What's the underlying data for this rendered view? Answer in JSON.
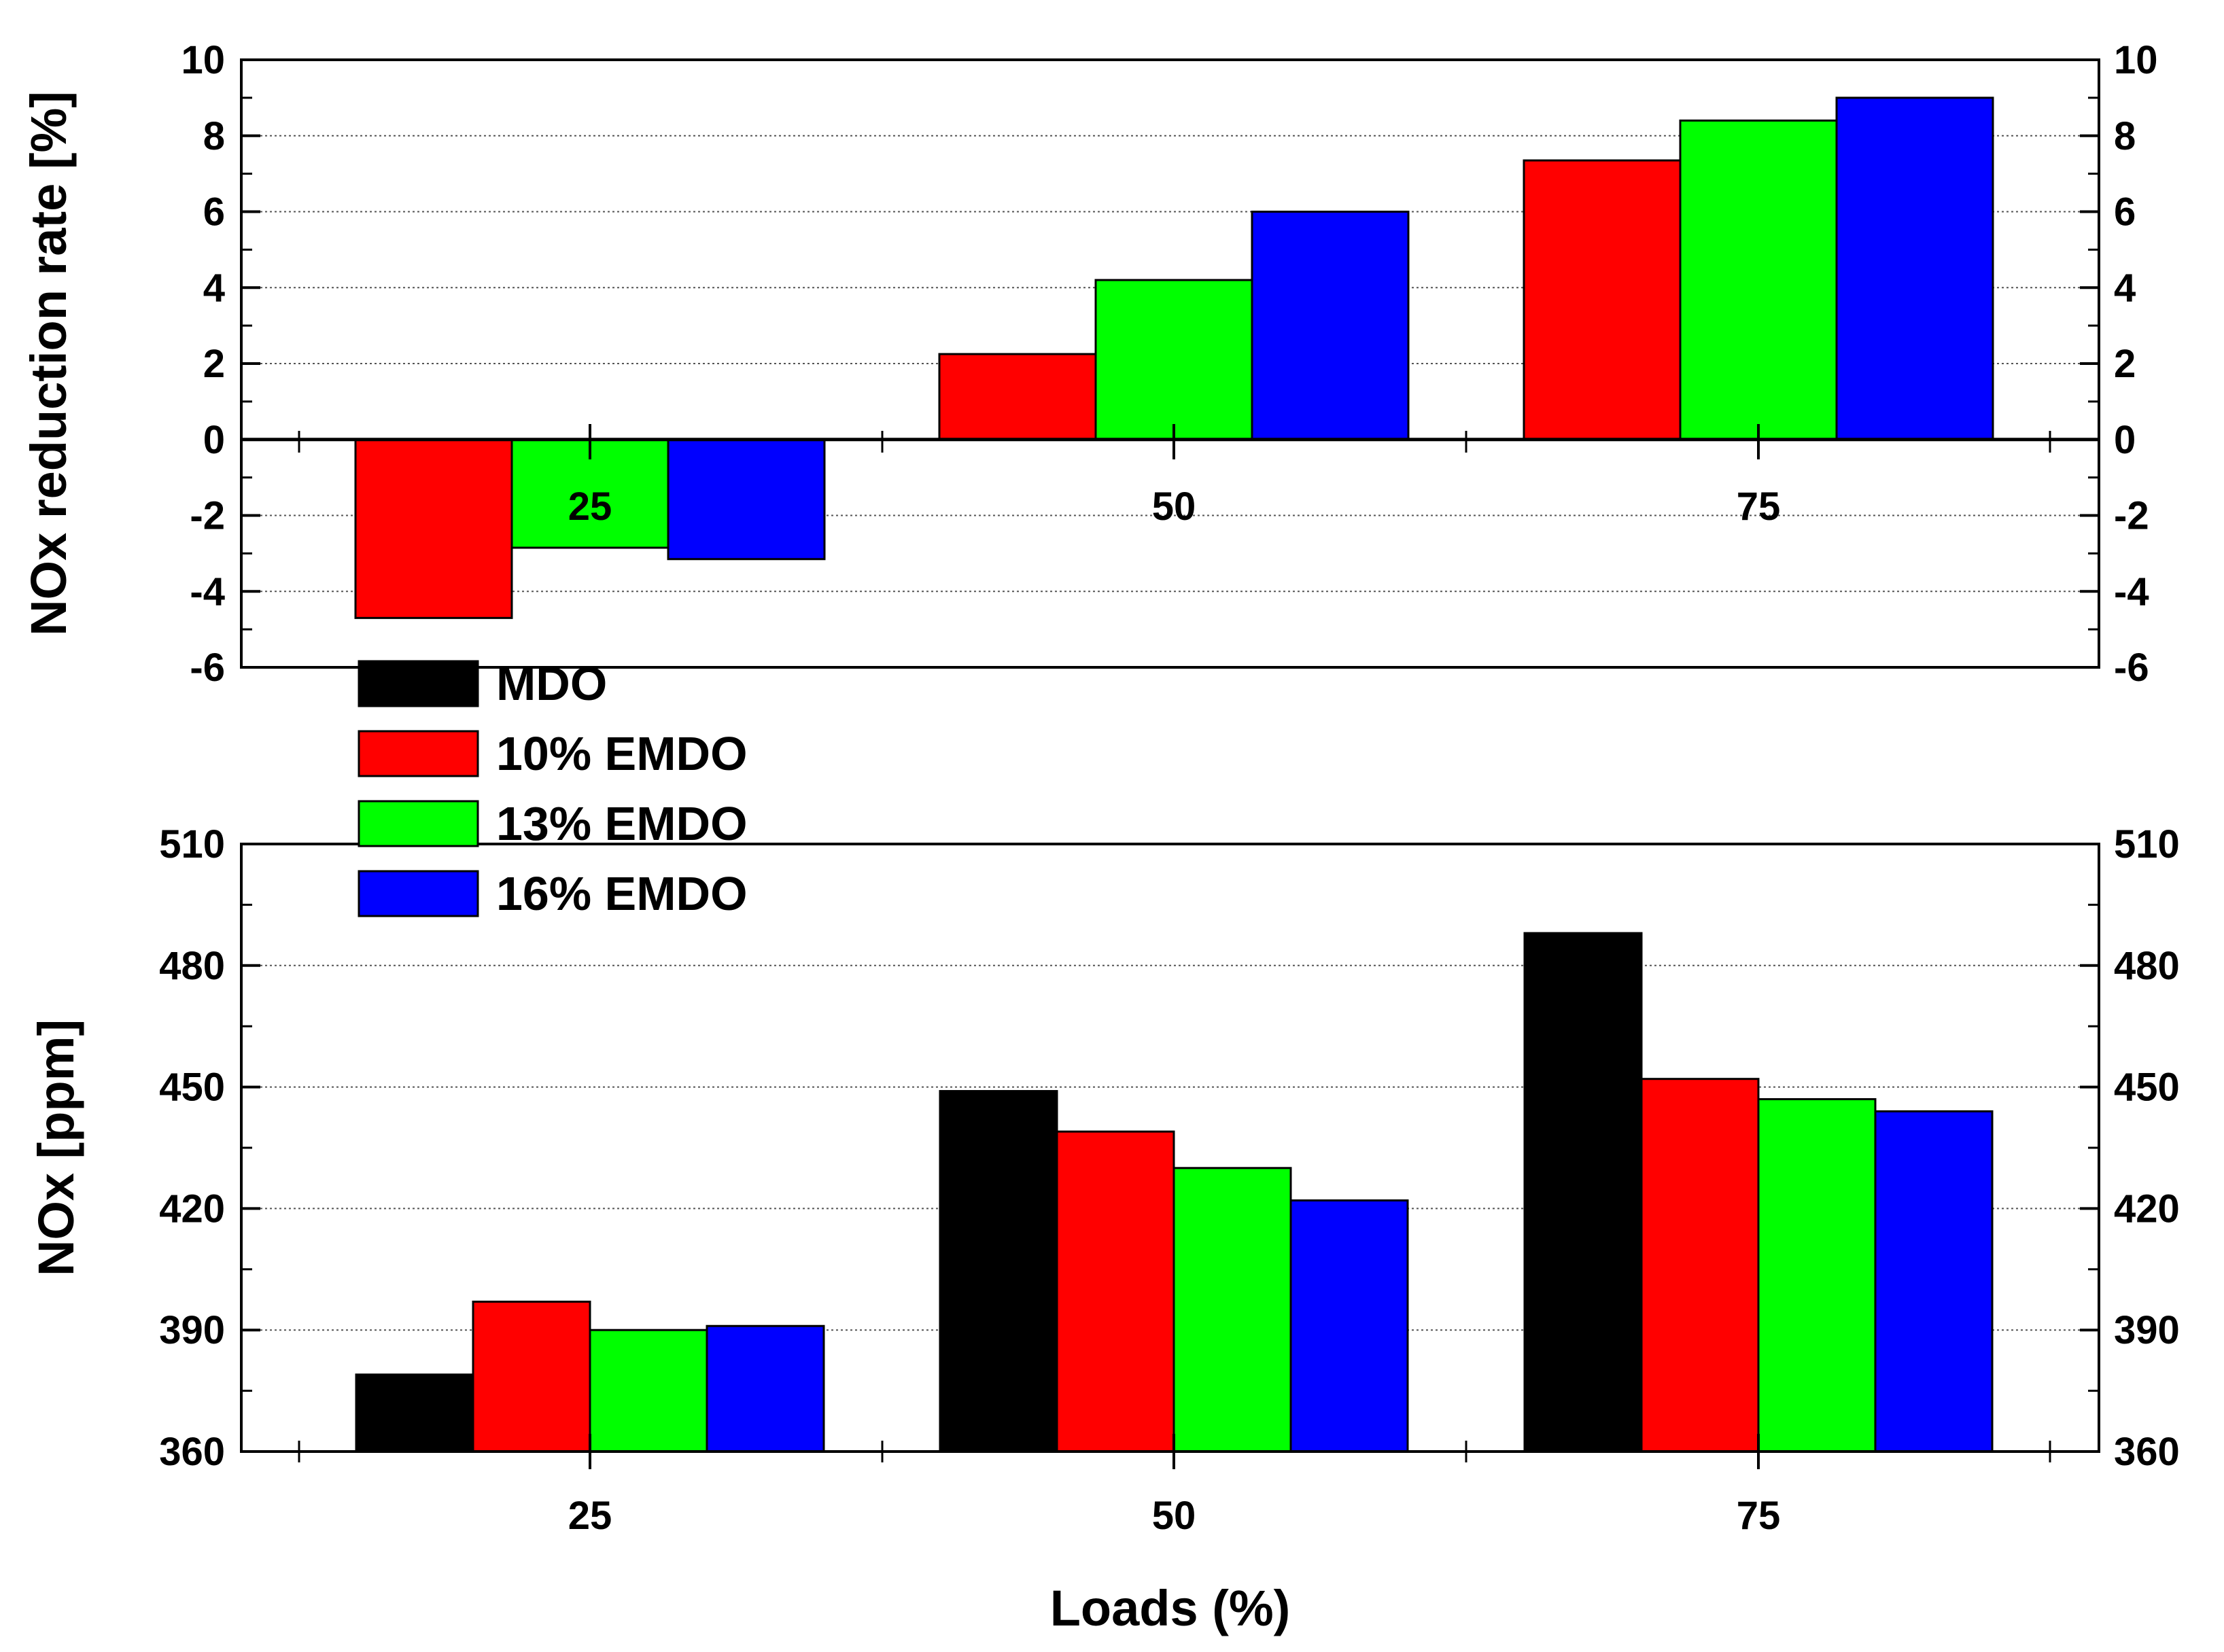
{
  "colors": {
    "MDO": "#000000",
    "10% EMDO": "#ff0000",
    "13% EMDO": "#00ff00",
    "16% EMDO": "#0000ff"
  },
  "legend": [
    "MDO",
    "10% EMDO",
    "13% EMDO",
    "16% EMDO"
  ],
  "chart_data": [
    {
      "type": "bar",
      "panel": "top",
      "title": "",
      "xlabel": "",
      "ylabel": "NOx reduction rate [%]",
      "categories": [
        "25",
        "50",
        "75"
      ],
      "ylim": [
        -6,
        10
      ],
      "yticks": [
        "-6",
        "-4",
        "-2",
        "0",
        "2",
        "4",
        "6",
        "8",
        "10"
      ],
      "grid": true,
      "series": [
        {
          "name": "10% EMDO",
          "values": [
            -4.7,
            2.25,
            7.35
          ]
        },
        {
          "name": "13% EMDO",
          "values": [
            -2.85,
            4.2,
            8.4
          ]
        },
        {
          "name": "16% EMDO",
          "values": [
            -3.15,
            6.0,
            9.0
          ]
        }
      ]
    },
    {
      "type": "bar",
      "panel": "bottom",
      "title": "",
      "xlabel": "Loads (%)",
      "ylabel": "NOx [ppm]",
      "categories": [
        "25",
        "50",
        "75"
      ],
      "ylim": [
        360,
        510
      ],
      "yticks": [
        "360",
        "390",
        "420",
        "450",
        "480",
        "510"
      ],
      "grid": true,
      "series": [
        {
          "name": "MDO",
          "values": [
            379,
            449,
            488
          ]
        },
        {
          "name": "10% EMDO",
          "values": [
            397,
            439,
            452
          ]
        },
        {
          "name": "13% EMDO",
          "values": [
            390,
            430,
            447
          ]
        },
        {
          "name": "16% EMDO",
          "values": [
            391,
            422,
            444
          ]
        }
      ]
    }
  ]
}
